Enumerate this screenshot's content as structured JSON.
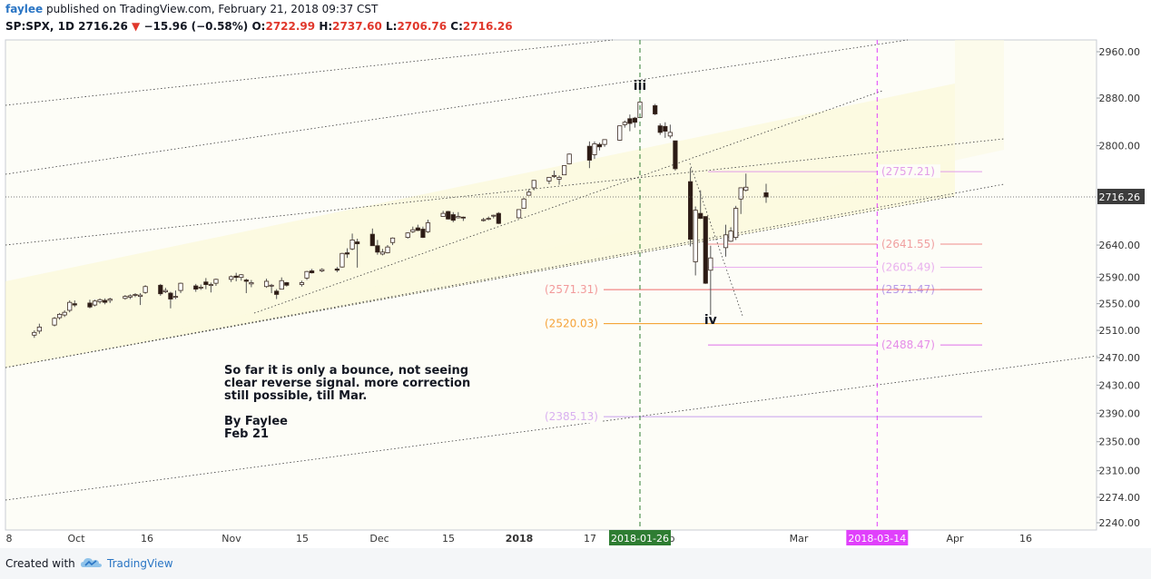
{
  "header": {
    "publisher": "faylee",
    "published_text": "published on TradingView.com, February 21, 2018 09:37 CST",
    "symbol": "SP:SPX, 1D",
    "last": "2716.26",
    "change": "−15.96 (−0.58%)",
    "o_label": "O:",
    "o_value": "2722.99",
    "h_label": "H:",
    "h_value": "2737.60",
    "l_label": "L:",
    "l_value": "2706.76",
    "c_label": "C:",
    "c_value": "2716.26"
  },
  "footer": {
    "created_with": "Created with",
    "brand": "TradingView"
  },
  "colors": {
    "bull": "#ffffff",
    "bear": "#2b1a14",
    "wick": "#555555",
    "channel_fill": "#fbf7cf",
    "green_marker": "#2e7d32",
    "magenta_marker": "#e040fb"
  },
  "chart_data": {
    "type": "candlestick",
    "symbol": "SP:SPX",
    "interval": "1D",
    "y_axis": {
      "min": 2240,
      "max": 2960,
      "scale": "log",
      "tick_labels": [
        "2960.00",
        "2880.00",
        "2800.00",
        "2640.00",
        "2590.00",
        "2550.00",
        "2510.00",
        "2470.00",
        "2430.00",
        "2390.00",
        "2350.00",
        "2310.00",
        "2274.00",
        "2240.00"
      ]
    },
    "x_axis": {
      "tick_labels": [
        "8",
        "Oct",
        "16",
        "Nov",
        "15",
        "Dec",
        "15",
        "2018",
        "17",
        "b",
        "Mar",
        "Apr",
        "16"
      ]
    },
    "last_price_label": "2716.26",
    "markers": [
      {
        "date": "2018-01-26",
        "label": "2018-01-26",
        "color": "#2e7d32"
      },
      {
        "date": "2018-03-14",
        "label": "2018-03-14",
        "color": "#e040fb"
      }
    ],
    "wave_labels": [
      {
        "text": "iii",
        "date": "2018-01-26",
        "price": 2900
      },
      {
        "text": "iv",
        "date": "2018-02-09",
        "price": 2525
      }
    ],
    "levels_right": [
      {
        "label": "(2757.21)",
        "price": 2757.21,
        "color": "#e39de8"
      },
      {
        "label": "(2641.55)",
        "price": 2641.55,
        "color": "#f0a0a0"
      },
      {
        "label": "(2605.49)",
        "price": 2605.49,
        "color": "#e9b0ee"
      },
      {
        "label": "(2571.47)",
        "price": 2571.47,
        "color": "#b79be8"
      },
      {
        "label": "(2488.47)",
        "price": 2488.47,
        "color": "#e58ce8"
      }
    ],
    "levels_left": [
      {
        "label": "(2571.31)",
        "price": 2571.31,
        "color": "#f29a9a"
      },
      {
        "label": "(2520.03)",
        "price": 2520.03,
        "color": "#f5a238"
      },
      {
        "label": "(2385.13)",
        "price": 2385.13,
        "color": "#d9b0f0"
      }
    ],
    "annotation": {
      "lines": [
        "So far it is only a bounce, not seeing",
        "clear reverse signal. more correction",
        "still possible, till Mar."
      ],
      "byline": [
        "By Faylee",
        "Feb 21"
      ]
    },
    "candles": [
      {
        "date": "2017-09-28",
        "o": 2503,
        "h": 2510,
        "l": 2499,
        "c": 2507
      },
      {
        "date": "2017-09-29",
        "o": 2509,
        "h": 2520,
        "l": 2505,
        "c": 2515
      },
      {
        "date": "2017-10-02",
        "o": 2518,
        "h": 2530,
        "l": 2516,
        "c": 2528
      },
      {
        "date": "2017-10-03",
        "o": 2529,
        "h": 2536,
        "l": 2526,
        "c": 2534
      },
      {
        "date": "2017-10-04",
        "o": 2533,
        "h": 2540,
        "l": 2530,
        "c": 2537
      },
      {
        "date": "2017-10-05",
        "o": 2540,
        "h": 2555,
        "l": 2537,
        "c": 2552
      },
      {
        "date": "2017-10-06",
        "o": 2550,
        "h": 2555,
        "l": 2545,
        "c": 2548
      },
      {
        "date": "2017-10-09",
        "o": 2551,
        "h": 2556,
        "l": 2543,
        "c": 2545
      },
      {
        "date": "2017-10-10",
        "o": 2548,
        "h": 2556,
        "l": 2546,
        "c": 2554
      },
      {
        "date": "2017-10-11",
        "o": 2553,
        "h": 2558,
        "l": 2550,
        "c": 2556
      },
      {
        "date": "2017-10-12",
        "o": 2555,
        "h": 2558,
        "l": 2549,
        "c": 2552
      },
      {
        "date": "2017-10-13",
        "o": 2555,
        "h": 2559,
        "l": 2551,
        "c": 2557
      },
      {
        "date": "2017-10-16",
        "o": 2558,
        "h": 2563,
        "l": 2556,
        "c": 2561
      },
      {
        "date": "2017-10-17",
        "o": 2560,
        "h": 2564,
        "l": 2557,
        "c": 2562
      },
      {
        "date": "2017-10-18",
        "o": 2563,
        "h": 2566,
        "l": 2560,
        "c": 2564
      },
      {
        "date": "2017-10-19",
        "o": 2561,
        "h": 2566,
        "l": 2548,
        "c": 2563
      },
      {
        "date": "2017-10-20",
        "o": 2567,
        "h": 2578,
        "l": 2565,
        "c": 2576
      },
      {
        "date": "2017-10-23",
        "o": 2578,
        "h": 2580,
        "l": 2562,
        "c": 2565
      },
      {
        "date": "2017-10-24",
        "o": 2568,
        "h": 2574,
        "l": 2566,
        "c": 2570
      },
      {
        "date": "2017-10-25",
        "o": 2566,
        "h": 2568,
        "l": 2543,
        "c": 2557
      },
      {
        "date": "2017-10-26",
        "o": 2560,
        "h": 2570,
        "l": 2557,
        "c": 2561
      },
      {
        "date": "2017-10-27",
        "o": 2570,
        "h": 2582,
        "l": 2566,
        "c": 2581
      },
      {
        "date": "2017-10-30",
        "o": 2577,
        "h": 2580,
        "l": 2568,
        "c": 2572
      },
      {
        "date": "2017-10-31",
        "o": 2575,
        "h": 2579,
        "l": 2571,
        "c": 2575
      },
      {
        "date": "2017-11-01",
        "o": 2583,
        "h": 2589,
        "l": 2572,
        "c": 2579
      },
      {
        "date": "2017-11-02",
        "o": 2579,
        "h": 2582,
        "l": 2567,
        "c": 2579
      },
      {
        "date": "2017-11-03",
        "o": 2581,
        "h": 2588,
        "l": 2577,
        "c": 2587
      },
      {
        "date": "2017-11-06",
        "o": 2587,
        "h": 2593,
        "l": 2583,
        "c": 2591
      },
      {
        "date": "2017-11-07",
        "o": 2592,
        "h": 2597,
        "l": 2584,
        "c": 2590
      },
      {
        "date": "2017-11-08",
        "o": 2590,
        "h": 2595,
        "l": 2585,
        "c": 2594
      },
      {
        "date": "2017-11-09",
        "o": 2586,
        "h": 2588,
        "l": 2566,
        "c": 2584
      },
      {
        "date": "2017-11-10",
        "o": 2580,
        "h": 2586,
        "l": 2575,
        "c": 2582
      },
      {
        "date": "2017-11-13",
        "o": 2576,
        "h": 2588,
        "l": 2574,
        "c": 2584
      },
      {
        "date": "2017-11-14",
        "o": 2577,
        "h": 2580,
        "l": 2566,
        "c": 2578
      },
      {
        "date": "2017-11-15",
        "o": 2569,
        "h": 2572,
        "l": 2557,
        "c": 2564
      },
      {
        "date": "2017-11-16",
        "o": 2572,
        "h": 2590,
        "l": 2572,
        "c": 2585
      },
      {
        "date": "2017-11-17",
        "o": 2582,
        "h": 2583,
        "l": 2576,
        "c": 2578
      },
      {
        "date": "2017-11-20",
        "o": 2579,
        "h": 2585,
        "l": 2576,
        "c": 2582
      },
      {
        "date": "2017-11-21",
        "o": 2589,
        "h": 2600,
        "l": 2586,
        "c": 2599
      },
      {
        "date": "2017-11-22",
        "o": 2600,
        "h": 2603,
        "l": 2596,
        "c": 2597
      },
      {
        "date": "2017-11-24",
        "o": 2600,
        "h": 2604,
        "l": 2598,
        "c": 2602
      },
      {
        "date": "2017-11-27",
        "o": 2603,
        "h": 2606,
        "l": 2598,
        "c": 2601
      },
      {
        "date": "2017-11-28",
        "o": 2606,
        "h": 2628,
        "l": 2605,
        "c": 2627
      },
      {
        "date": "2017-11-29",
        "o": 2628,
        "h": 2635,
        "l": 2620,
        "c": 2626
      },
      {
        "date": "2017-11-30",
        "o": 2634,
        "h": 2658,
        "l": 2632,
        "c": 2648
      },
      {
        "date": "2017-12-01",
        "o": 2645,
        "h": 2650,
        "l": 2605,
        "c": 2642
      },
      {
        "date": "2017-12-04",
        "o": 2657,
        "h": 2666,
        "l": 2639,
        "c": 2639
      },
      {
        "date": "2017-12-05",
        "o": 2639,
        "h": 2648,
        "l": 2625,
        "c": 2629
      },
      {
        "date": "2017-12-06",
        "o": 2626,
        "h": 2634,
        "l": 2624,
        "c": 2629
      },
      {
        "date": "2017-12-07",
        "o": 2628,
        "h": 2640,
        "l": 2627,
        "c": 2637
      },
      {
        "date": "2017-12-08",
        "o": 2644,
        "h": 2652,
        "l": 2640,
        "c": 2651
      },
      {
        "date": "2017-12-11",
        "o": 2652,
        "h": 2660,
        "l": 2650,
        "c": 2659
      },
      {
        "date": "2017-12-12",
        "o": 2661,
        "h": 2669,
        "l": 2659,
        "c": 2664
      },
      {
        "date": "2017-12-13",
        "o": 2667,
        "h": 2672,
        "l": 2662,
        "c": 2663
      },
      {
        "date": "2017-12-14",
        "o": 2665,
        "h": 2669,
        "l": 2651,
        "c": 2652
      },
      {
        "date": "2017-12-15",
        "o": 2661,
        "h": 2680,
        "l": 2659,
        "c": 2675
      },
      {
        "date": "2017-12-18",
        "o": 2685,
        "h": 2694,
        "l": 2685,
        "c": 2690
      },
      {
        "date": "2017-12-19",
        "o": 2693,
        "h": 2694,
        "l": 2680,
        "c": 2681
      },
      {
        "date": "2017-12-20",
        "o": 2688,
        "h": 2692,
        "l": 2676,
        "c": 2679
      },
      {
        "date": "2017-12-21",
        "o": 2683,
        "h": 2692,
        "l": 2682,
        "c": 2685
      },
      {
        "date": "2017-12-22",
        "o": 2684,
        "h": 2685,
        "l": 2678,
        "c": 2683
      },
      {
        "date": "2017-12-26",
        "o": 2680,
        "h": 2683,
        "l": 2677,
        "c": 2680
      },
      {
        "date": "2017-12-27",
        "o": 2682,
        "h": 2685,
        "l": 2679,
        "c": 2682
      },
      {
        "date": "2017-12-28",
        "o": 2686,
        "h": 2688,
        "l": 2682,
        "c": 2687
      },
      {
        "date": "2017-12-29",
        "o": 2690,
        "h": 2692,
        "l": 2673,
        "c": 2674
      },
      {
        "date": "2018-01-02",
        "o": 2683,
        "h": 2696,
        "l": 2682,
        "c": 2696
      },
      {
        "date": "2018-01-03",
        "o": 2698,
        "h": 2715,
        "l": 2698,
        "c": 2713
      },
      {
        "date": "2018-01-04",
        "o": 2719,
        "h": 2729,
        "l": 2719,
        "c": 2724
      },
      {
        "date": "2018-01-05",
        "o": 2731,
        "h": 2743,
        "l": 2727,
        "c": 2743
      },
      {
        "date": "2018-01-08",
        "o": 2742,
        "h": 2748,
        "l": 2737,
        "c": 2748
      },
      {
        "date": "2018-01-09",
        "o": 2751,
        "h": 2759,
        "l": 2747,
        "c": 2751
      },
      {
        "date": "2018-01-10",
        "o": 2745,
        "h": 2751,
        "l": 2736,
        "c": 2748
      },
      {
        "date": "2018-01-11",
        "o": 2752,
        "h": 2767,
        "l": 2752,
        "c": 2767
      },
      {
        "date": "2018-01-12",
        "o": 2770,
        "h": 2787,
        "l": 2769,
        "c": 2786
      },
      {
        "date": "2018-01-16",
        "o": 2799,
        "h": 2807,
        "l": 2763,
        "c": 2776
      },
      {
        "date": "2018-01-17",
        "o": 2785,
        "h": 2807,
        "l": 2778,
        "c": 2803
      },
      {
        "date": "2018-01-18",
        "o": 2802,
        "h": 2805,
        "l": 2792,
        "c": 2798
      },
      {
        "date": "2018-01-19",
        "o": 2802,
        "h": 2810,
        "l": 2798,
        "c": 2810
      },
      {
        "date": "2018-01-22",
        "o": 2809,
        "h": 2833,
        "l": 2808,
        "c": 2833
      },
      {
        "date": "2018-01-23",
        "o": 2835,
        "h": 2842,
        "l": 2830,
        "c": 2839
      },
      {
        "date": "2018-01-24",
        "o": 2845,
        "h": 2852,
        "l": 2824,
        "c": 2837
      },
      {
        "date": "2018-01-25",
        "o": 2846,
        "h": 2848,
        "l": 2830,
        "c": 2839
      },
      {
        "date": "2018-01-26",
        "o": 2847,
        "h": 2873,
        "l": 2846,
        "c": 2873
      },
      {
        "date": "2018-01-29",
        "o": 2867,
        "h": 2870,
        "l": 2851,
        "c": 2853
      },
      {
        "date": "2018-01-30",
        "o": 2833,
        "h": 2837,
        "l": 2818,
        "c": 2822
      },
      {
        "date": "2018-01-31",
        "o": 2832,
        "h": 2839,
        "l": 2813,
        "c": 2824
      },
      {
        "date": "2018-02-01",
        "o": 2816,
        "h": 2835,
        "l": 2812,
        "c": 2822
      },
      {
        "date": "2018-02-02",
        "o": 2808,
        "h": 2808,
        "l": 2759,
        "c": 2762
      },
      {
        "date": "2018-02-05",
        "o": 2741,
        "h": 2763,
        "l": 2638,
        "c": 2649
      },
      {
        "date": "2018-02-06",
        "o": 2614,
        "h": 2701,
        "l": 2593,
        "c": 2695
      },
      {
        "date": "2018-02-07",
        "o": 2690,
        "h": 2727,
        "l": 2681,
        "c": 2682
      },
      {
        "date": "2018-02-08",
        "o": 2685,
        "h": 2685,
        "l": 2580,
        "c": 2581
      },
      {
        "date": "2018-02-09",
        "o": 2601,
        "h": 2639,
        "l": 2533,
        "c": 2620
      },
      {
        "date": "2018-02-12",
        "o": 2636,
        "h": 2672,
        "l": 2622,
        "c": 2656
      },
      {
        "date": "2018-02-13",
        "o": 2646,
        "h": 2668,
        "l": 2645,
        "c": 2662
      },
      {
        "date": "2018-02-14",
        "o": 2652,
        "h": 2702,
        "l": 2648,
        "c": 2698
      },
      {
        "date": "2018-02-15",
        "o": 2713,
        "h": 2731,
        "l": 2689,
        "c": 2731
      },
      {
        "date": "2018-02-16",
        "o": 2727,
        "h": 2754,
        "l": 2725,
        "c": 2732
      },
      {
        "date": "2018-02-20",
        "o": 2722.99,
        "h": 2737.6,
        "l": 2706.76,
        "c": 2716.26
      }
    ]
  }
}
